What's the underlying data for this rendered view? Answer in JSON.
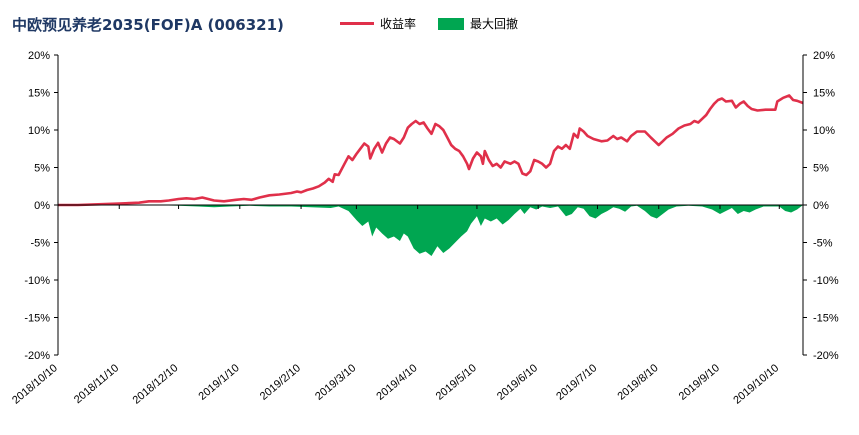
{
  "chart_data": {
    "type": "line",
    "title": "中欧预见养老2035(FOF)A (006321)",
    "legend_position": "top",
    "series": [
      {
        "name": "收益率",
        "kind": "line",
        "color": "#e0304a"
      },
      {
        "name": "最大回撤",
        "kind": "area",
        "color": "#00a651"
      }
    ],
    "x_tick_labels": [
      "2018/10/10",
      "2018/11/10",
      "2018/12/10",
      "2019/1/10",
      "2019/2/10",
      "2019/3/10",
      "2019/4/10",
      "2019/5/10",
      "2019/6/10",
      "2019/7/10",
      "2019/8/10",
      "2019/9/10",
      "2019/10/10"
    ],
    "y_tick_labels": [
      "20%",
      "15%",
      "10%",
      "5%",
      "0%",
      "-5%",
      "-10%",
      "-15%",
      "-20%"
    ],
    "ylim": [
      -20,
      20
    ],
    "y_unit": "%",
    "x_date_range": [
      "2018-10-10",
      "2019-10-22"
    ],
    "grid": false,
    "return_points": [
      [
        "2018-10-10",
        0.0
      ],
      [
        "2018-10-20",
        0.0
      ],
      [
        "2018-11-01",
        0.1
      ],
      [
        "2018-11-10",
        0.2
      ],
      [
        "2018-11-20",
        0.3
      ],
      [
        "2018-11-25",
        0.5
      ],
      [
        "2018-12-01",
        0.5
      ],
      [
        "2018-12-05",
        0.6
      ],
      [
        "2018-12-10",
        0.8
      ],
      [
        "2018-12-14",
        0.9
      ],
      [
        "2018-12-18",
        0.8
      ],
      [
        "2018-12-22",
        1.0
      ],
      [
        "2018-12-28",
        0.6
      ],
      [
        "2019-01-02",
        0.5
      ],
      [
        "2019-01-08",
        0.7
      ],
      [
        "2019-01-12",
        0.8
      ],
      [
        "2019-01-16",
        0.7
      ],
      [
        "2019-01-20",
        1.0
      ],
      [
        "2019-01-25",
        1.3
      ],
      [
        "2019-01-30",
        1.4
      ],
      [
        "2019-02-05",
        1.6
      ],
      [
        "2019-02-08",
        1.8
      ],
      [
        "2019-02-10",
        1.7
      ],
      [
        "2019-02-13",
        2.0
      ],
      [
        "2019-02-16",
        2.2
      ],
      [
        "2019-02-19",
        2.5
      ],
      [
        "2019-02-22",
        3.0
      ],
      [
        "2019-02-24",
        3.5
      ],
      [
        "2019-02-26",
        3.1
      ],
      [
        "2019-02-27",
        4.1
      ],
      [
        "2019-03-01",
        4.0
      ],
      [
        "2019-03-04",
        5.5
      ],
      [
        "2019-03-06",
        6.5
      ],
      [
        "2019-03-08",
        6.0
      ],
      [
        "2019-03-10",
        6.8
      ],
      [
        "2019-03-12",
        7.5
      ],
      [
        "2019-03-14",
        8.2
      ],
      [
        "2019-03-16",
        7.8
      ],
      [
        "2019-03-17",
        6.2
      ],
      [
        "2019-03-19",
        7.5
      ],
      [
        "2019-03-21",
        8.3
      ],
      [
        "2019-03-23",
        7.0
      ],
      [
        "2019-03-25",
        8.2
      ],
      [
        "2019-03-27",
        9.0
      ],
      [
        "2019-03-29",
        8.8
      ],
      [
        "2019-04-01",
        8.2
      ],
      [
        "2019-04-03",
        9.0
      ],
      [
        "2019-04-05",
        10.3
      ],
      [
        "2019-04-07",
        10.8
      ],
      [
        "2019-04-09",
        11.2
      ],
      [
        "2019-04-11",
        10.8
      ],
      [
        "2019-04-13",
        11.0
      ],
      [
        "2019-04-15",
        10.2
      ],
      [
        "2019-04-17",
        9.5
      ],
      [
        "2019-04-19",
        10.8
      ],
      [
        "2019-04-21",
        10.5
      ],
      [
        "2019-04-23",
        10.0
      ],
      [
        "2019-04-25",
        9.0
      ],
      [
        "2019-04-27",
        8.0
      ],
      [
        "2019-04-29",
        7.5
      ],
      [
        "2019-05-01",
        7.2
      ],
      [
        "2019-05-03",
        6.5
      ],
      [
        "2019-05-05",
        5.5
      ],
      [
        "2019-05-06",
        4.8
      ],
      [
        "2019-05-08",
        6.2
      ],
      [
        "2019-05-10",
        7.0
      ],
      [
        "2019-05-12",
        6.5
      ],
      [
        "2019-05-13",
        5.5
      ],
      [
        "2019-05-14",
        7.2
      ],
      [
        "2019-05-16",
        6.0
      ],
      [
        "2019-05-18",
        5.2
      ],
      [
        "2019-05-20",
        5.5
      ],
      [
        "2019-05-22",
        5.0
      ],
      [
        "2019-05-24",
        5.8
      ],
      [
        "2019-05-27",
        5.5
      ],
      [
        "2019-05-29",
        5.8
      ],
      [
        "2019-05-31",
        5.5
      ],
      [
        "2019-06-02",
        4.2
      ],
      [
        "2019-06-04",
        4.0
      ],
      [
        "2019-06-06",
        4.5
      ],
      [
        "2019-06-08",
        6.0
      ],
      [
        "2019-06-10",
        5.8
      ],
      [
        "2019-06-12",
        5.5
      ],
      [
        "2019-06-14",
        5.0
      ],
      [
        "2019-06-16",
        5.5
      ],
      [
        "2019-06-18",
        7.2
      ],
      [
        "2019-06-20",
        7.8
      ],
      [
        "2019-06-22",
        7.5
      ],
      [
        "2019-06-24",
        8.0
      ],
      [
        "2019-06-26",
        7.5
      ],
      [
        "2019-06-28",
        9.5
      ],
      [
        "2019-06-30",
        9.0
      ],
      [
        "2019-07-01",
        10.2
      ],
      [
        "2019-07-03",
        9.8
      ],
      [
        "2019-07-05",
        9.2
      ],
      [
        "2019-07-08",
        8.8
      ],
      [
        "2019-07-12",
        8.5
      ],
      [
        "2019-07-15",
        8.6
      ],
      [
        "2019-07-18",
        9.2
      ],
      [
        "2019-07-20",
        8.8
      ],
      [
        "2019-07-22",
        9.0
      ],
      [
        "2019-07-25",
        8.5
      ],
      [
        "2019-07-27",
        9.2
      ],
      [
        "2019-07-30",
        9.8
      ],
      [
        "2019-08-03",
        9.8
      ],
      [
        "2019-08-06",
        9.0
      ],
      [
        "2019-08-08",
        8.5
      ],
      [
        "2019-08-10",
        8.0
      ],
      [
        "2019-08-12",
        8.5
      ],
      [
        "2019-08-14",
        9.0
      ],
      [
        "2019-08-17",
        9.5
      ],
      [
        "2019-08-20",
        10.2
      ],
      [
        "2019-08-23",
        10.6
      ],
      [
        "2019-08-26",
        10.8
      ],
      [
        "2019-08-28",
        11.2
      ],
      [
        "2019-08-30",
        11.0
      ],
      [
        "2019-09-01",
        11.5
      ],
      [
        "2019-09-03",
        12.0
      ],
      [
        "2019-09-05",
        12.8
      ],
      [
        "2019-09-07",
        13.5
      ],
      [
        "2019-09-09",
        14.0
      ],
      [
        "2019-09-11",
        14.2
      ],
      [
        "2019-09-13",
        13.8
      ],
      [
        "2019-09-16",
        13.9
      ],
      [
        "2019-09-18",
        13.0
      ],
      [
        "2019-09-20",
        13.5
      ],
      [
        "2019-09-22",
        13.8
      ],
      [
        "2019-09-24",
        13.2
      ],
      [
        "2019-09-26",
        12.8
      ],
      [
        "2019-09-29",
        12.6
      ],
      [
        "2019-10-03",
        12.7
      ],
      [
        "2019-10-08",
        12.7
      ],
      [
        "2019-10-09",
        13.8
      ],
      [
        "2019-10-12",
        14.3
      ],
      [
        "2019-10-15",
        14.6
      ],
      [
        "2019-10-17",
        14.0
      ],
      [
        "2019-10-19",
        13.9
      ],
      [
        "2019-10-22",
        13.6
      ]
    ],
    "drawdown_points": [
      [
        "2018-10-10",
        0.0
      ],
      [
        "2018-11-25",
        0.0
      ],
      [
        "2018-12-10",
        -0.1
      ],
      [
        "2018-12-20",
        -0.2
      ],
      [
        "2018-12-28",
        -0.3
      ],
      [
        "2019-01-05",
        -0.2
      ],
      [
        "2019-01-15",
        -0.1
      ],
      [
        "2019-01-25",
        -0.2
      ],
      [
        "2019-02-05",
        -0.2
      ],
      [
        "2019-02-15",
        -0.3
      ],
      [
        "2019-02-25",
        -0.4
      ],
      [
        "2019-03-01",
        -0.2
      ],
      [
        "2019-03-06",
        -0.8
      ],
      [
        "2019-03-10",
        -2.0
      ],
      [
        "2019-03-13",
        -2.8
      ],
      [
        "2019-03-16",
        -2.2
      ],
      [
        "2019-03-18",
        -4.2
      ],
      [
        "2019-03-20",
        -3.0
      ],
      [
        "2019-03-23",
        -3.8
      ],
      [
        "2019-03-26",
        -4.5
      ],
      [
        "2019-03-29",
        -4.2
      ],
      [
        "2019-04-01",
        -4.8
      ],
      [
        "2019-04-03",
        -3.8
      ],
      [
        "2019-04-05",
        -4.2
      ],
      [
        "2019-04-08",
        -5.8
      ],
      [
        "2019-04-11",
        -6.5
      ],
      [
        "2019-04-14",
        -6.2
      ],
      [
        "2019-04-17",
        -6.8
      ],
      [
        "2019-04-20",
        -5.5
      ],
      [
        "2019-04-23",
        -6.4
      ],
      [
        "2019-04-26",
        -5.8
      ],
      [
        "2019-04-29",
        -5.0
      ],
      [
        "2019-05-02",
        -4.2
      ],
      [
        "2019-05-05",
        -3.5
      ],
      [
        "2019-05-07",
        -2.5
      ],
      [
        "2019-05-10",
        -1.5
      ],
      [
        "2019-05-12",
        -2.8
      ],
      [
        "2019-05-14",
        -1.8
      ],
      [
        "2019-05-17",
        -2.2
      ],
      [
        "2019-05-20",
        -1.8
      ],
      [
        "2019-05-23",
        -2.6
      ],
      [
        "2019-05-26",
        -2.0
      ],
      [
        "2019-05-29",
        -1.2
      ],
      [
        "2019-06-01",
        -0.5
      ],
      [
        "2019-06-03",
        -1.2
      ],
      [
        "2019-06-06",
        -0.3
      ],
      [
        "2019-06-09",
        -0.6
      ],
      [
        "2019-06-12",
        -0.2
      ],
      [
        "2019-06-16",
        -0.4
      ],
      [
        "2019-06-20",
        -0.2
      ],
      [
        "2019-06-24",
        -1.5
      ],
      [
        "2019-06-27",
        -1.2
      ],
      [
        "2019-06-30",
        -0.3
      ],
      [
        "2019-07-03",
        -0.5
      ],
      [
        "2019-07-06",
        -1.5
      ],
      [
        "2019-07-09",
        -1.8
      ],
      [
        "2019-07-12",
        -1.2
      ],
      [
        "2019-07-15",
        -0.8
      ],
      [
        "2019-07-18",
        -0.3
      ],
      [
        "2019-07-21",
        -0.5
      ],
      [
        "2019-07-24",
        -0.9
      ],
      [
        "2019-07-27",
        -0.2
      ],
      [
        "2019-07-30",
        -0.1
      ],
      [
        "2019-08-03",
        -0.8
      ],
      [
        "2019-08-06",
        -1.5
      ],
      [
        "2019-08-09",
        -1.8
      ],
      [
        "2019-08-12",
        -1.2
      ],
      [
        "2019-08-15",
        -0.6
      ],
      [
        "2019-08-19",
        -0.2
      ],
      [
        "2019-08-25",
        -0.1
      ],
      [
        "2019-09-01",
        -0.2
      ],
      [
        "2019-09-06",
        -0.6
      ],
      [
        "2019-09-10",
        -1.2
      ],
      [
        "2019-09-13",
        -0.8
      ],
      [
        "2019-09-16",
        -0.4
      ],
      [
        "2019-09-19",
        -1.2
      ],
      [
        "2019-09-22",
        -0.8
      ],
      [
        "2019-09-25",
        -1.0
      ],
      [
        "2019-09-28",
        -0.6
      ],
      [
        "2019-10-02",
        -0.2
      ],
      [
        "2019-10-08",
        -0.2
      ],
      [
        "2019-10-10",
        -0.2
      ],
      [
        "2019-10-13",
        -0.8
      ],
      [
        "2019-10-16",
        -1.0
      ],
      [
        "2019-10-19",
        -0.6
      ],
      [
        "2019-10-22",
        0.0
      ]
    ]
  }
}
